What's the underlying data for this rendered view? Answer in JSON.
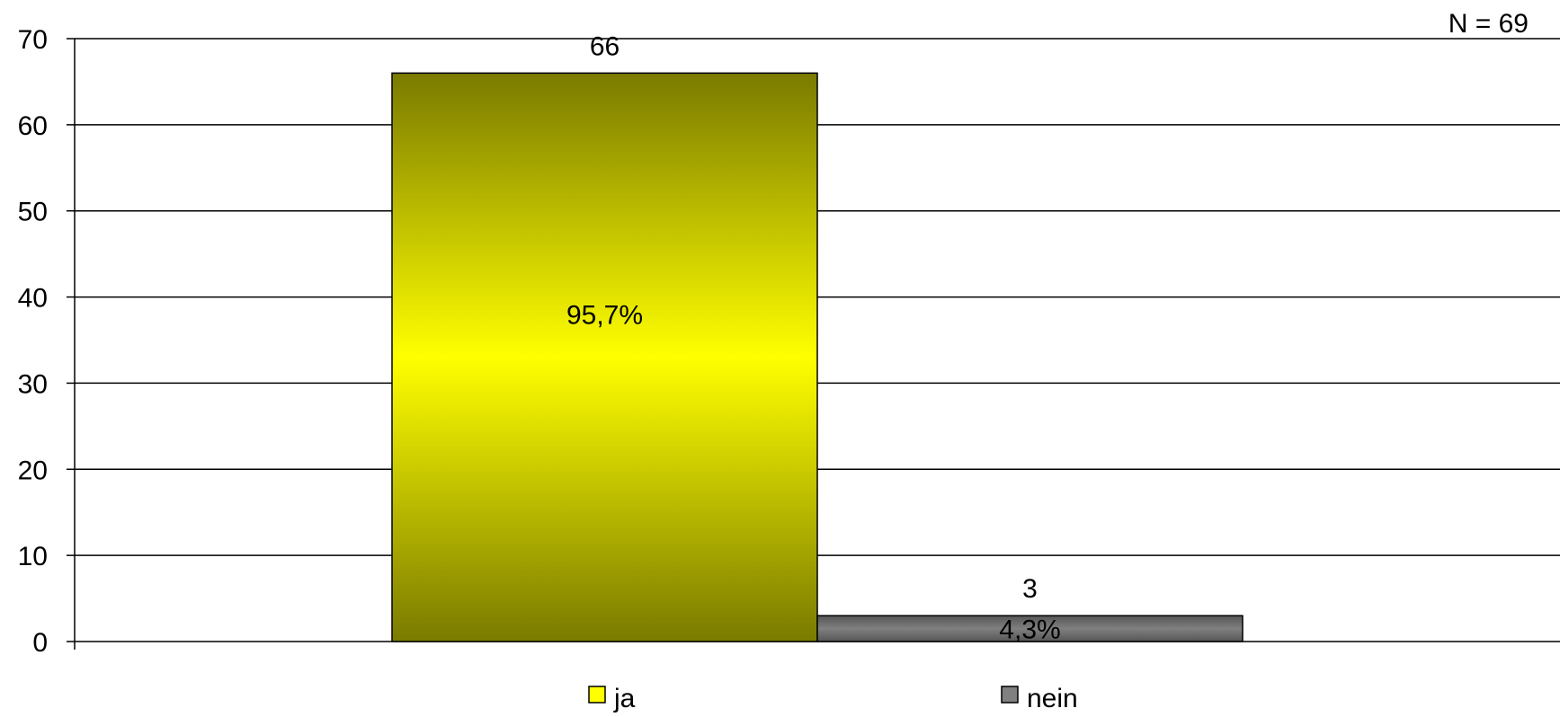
{
  "chart_data": {
    "type": "bar",
    "title": "",
    "xlabel": "",
    "ylabel": "",
    "annotation": "N = 69",
    "ylim": [
      0,
      70
    ],
    "yticks": [
      "0",
      "10",
      "20",
      "30",
      "40",
      "50",
      "60",
      "70"
    ],
    "grid": true,
    "legend_position": "bottom",
    "series": [
      {
        "name": "ja",
        "values": [
          66
        ],
        "percent_label": "95,7%",
        "color": "#ffff00",
        "edge_color": "#7a7a00",
        "percent_label_color": "#000000"
      },
      {
        "name": "nein",
        "values": [
          3
        ],
        "percent_label": "4,3%",
        "color": "#808080",
        "edge_color": "#555555",
        "percent_label_color": "#ffffff"
      }
    ]
  }
}
